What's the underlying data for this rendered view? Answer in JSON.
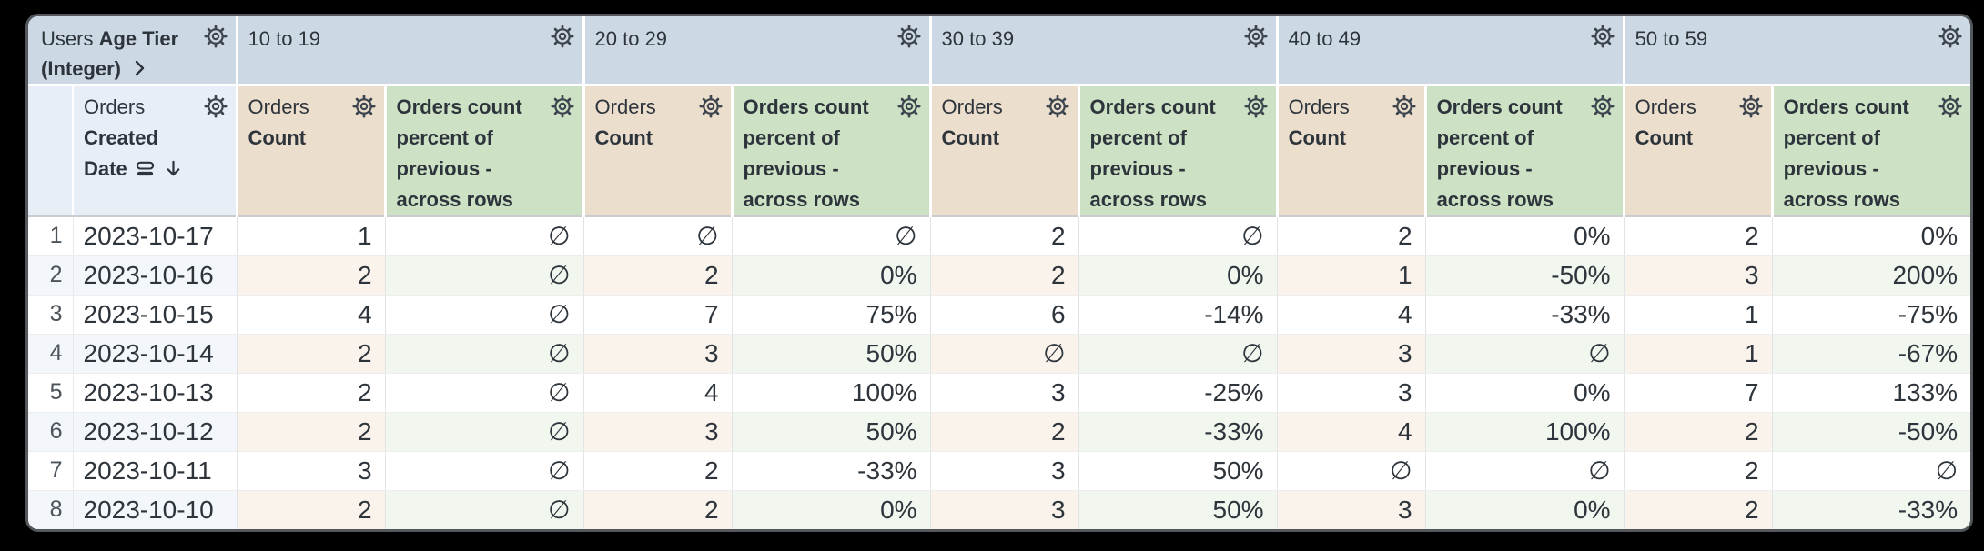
{
  "table": {
    "corner": {
      "prefix": "Users",
      "field": "Age Tier (Integer)"
    },
    "row_field": {
      "prefix": "Orders",
      "name": "Created Date"
    },
    "pivots": [
      "10 to 19",
      "20 to 29",
      "30 to 39",
      "40 to 49",
      "50 to 59"
    ],
    "measures": {
      "count": {
        "prefix": "Orders",
        "name": "Count"
      },
      "percent": {
        "name": "Orders count percent of previous - across rows"
      }
    },
    "icons": {
      "header_settings": "gear-icon",
      "corner_expand": "chevron-right-icon",
      "row_field_state": "sort-rows-icon",
      "sort_direction": "arrow-down-icon"
    },
    "rows": [
      {
        "index": "1",
        "date": "2023-10-17",
        "values": [
          "1",
          "∅",
          "∅",
          "∅",
          "2",
          "∅",
          "2",
          "0%",
          "2",
          "0%"
        ]
      },
      {
        "index": "2",
        "date": "2023-10-16",
        "values": [
          "2",
          "∅",
          "2",
          "0%",
          "2",
          "0%",
          "1",
          "-50%",
          "3",
          "200%"
        ]
      },
      {
        "index": "3",
        "date": "2023-10-15",
        "values": [
          "4",
          "∅",
          "7",
          "75%",
          "6",
          "-14%",
          "4",
          "-33%",
          "1",
          "-75%"
        ]
      },
      {
        "index": "4",
        "date": "2023-10-14",
        "values": [
          "2",
          "∅",
          "3",
          "50%",
          "∅",
          "∅",
          "3",
          "∅",
          "1",
          "-67%"
        ]
      },
      {
        "index": "5",
        "date": "2023-10-13",
        "values": [
          "2",
          "∅",
          "4",
          "100%",
          "3",
          "-25%",
          "3",
          "0%",
          "7",
          "133%"
        ]
      },
      {
        "index": "6",
        "date": "2023-10-12",
        "values": [
          "2",
          "∅",
          "3",
          "50%",
          "2",
          "-33%",
          "4",
          "100%",
          "2",
          "-50%"
        ]
      },
      {
        "index": "7",
        "date": "2023-10-11",
        "values": [
          "3",
          "∅",
          "2",
          "-33%",
          "3",
          "50%",
          "∅",
          "∅",
          "2",
          "∅"
        ]
      },
      {
        "index": "8",
        "date": "2023-10-10",
        "values": [
          "2",
          "∅",
          "2",
          "0%",
          "3",
          "50%",
          "3",
          "0%",
          "2",
          "-33%"
        ]
      }
    ],
    "colors": {
      "pivot_header_bg": "#ccd8e4",
      "row_header_bg": "#e8eef6",
      "count_header_bg": "#ecdecd",
      "percent_header_bg": "#cde2c5",
      "even_row_label_bg": "#f3f6fa",
      "even_count_bg": "#faf3ec",
      "even_percent_bg": "#f1f7ee",
      "text": "#2d343b",
      "frame_bg": "#000000"
    }
  }
}
